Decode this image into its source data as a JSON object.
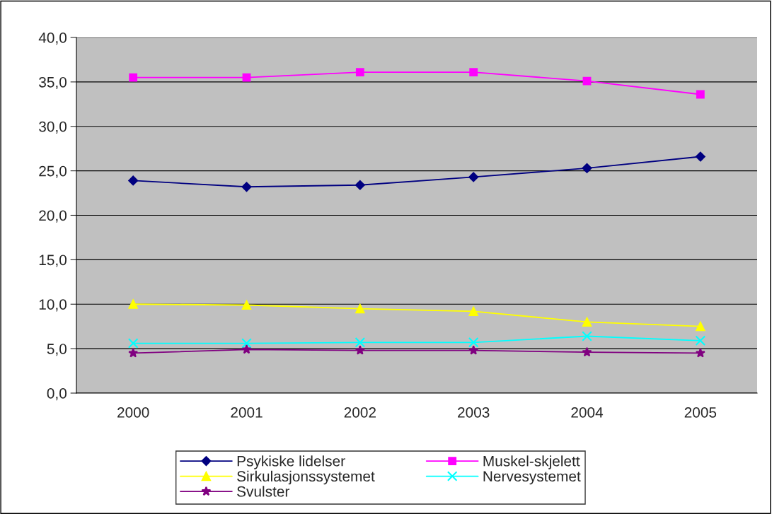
{
  "chart_data": {
    "type": "line",
    "categories": [
      "2000",
      "2001",
      "2002",
      "2003",
      "2004",
      "2005"
    ],
    "series": [
      {
        "name": "Psykiske lidelser",
        "color": "#000080",
        "marker": "diamond",
        "values": [
          23.9,
          23.2,
          23.4,
          24.3,
          25.3,
          26.6
        ]
      },
      {
        "name": "Muskel-skjelett",
        "color": "#ff00ff",
        "marker": "square",
        "values": [
          35.5,
          35.5,
          36.1,
          36.1,
          35.1,
          33.6
        ]
      },
      {
        "name": "Sirkulasjonssystemet",
        "color": "#ffff00",
        "marker": "triangle",
        "values": [
          10.0,
          9.9,
          9.5,
          9.2,
          8.0,
          7.5
        ]
      },
      {
        "name": "Nervesystemet",
        "color": "#00ffff",
        "marker": "cross",
        "values": [
          5.6,
          5.6,
          5.7,
          5.7,
          6.4,
          5.9
        ]
      },
      {
        "name": "Svulster",
        "color": "#800080",
        "marker": "star",
        "values": [
          4.5,
          4.9,
          4.8,
          4.8,
          4.6,
          4.5
        ]
      }
    ],
    "ylim": [
      0,
      40
    ],
    "yticks": [
      {
        "value": 0,
        "label": "0,0"
      },
      {
        "value": 5,
        "label": "5,0"
      },
      {
        "value": 10,
        "label": "10,0"
      },
      {
        "value": 15,
        "label": "15,0"
      },
      {
        "value": 20,
        "label": "20,0"
      },
      {
        "value": 25,
        "label": "25,0"
      },
      {
        "value": 30,
        "label": "30,0"
      },
      {
        "value": 35,
        "label": "35,0"
      },
      {
        "value": 40,
        "label": "40,0"
      }
    ],
    "grid": "y",
    "legend": "bottom"
  }
}
